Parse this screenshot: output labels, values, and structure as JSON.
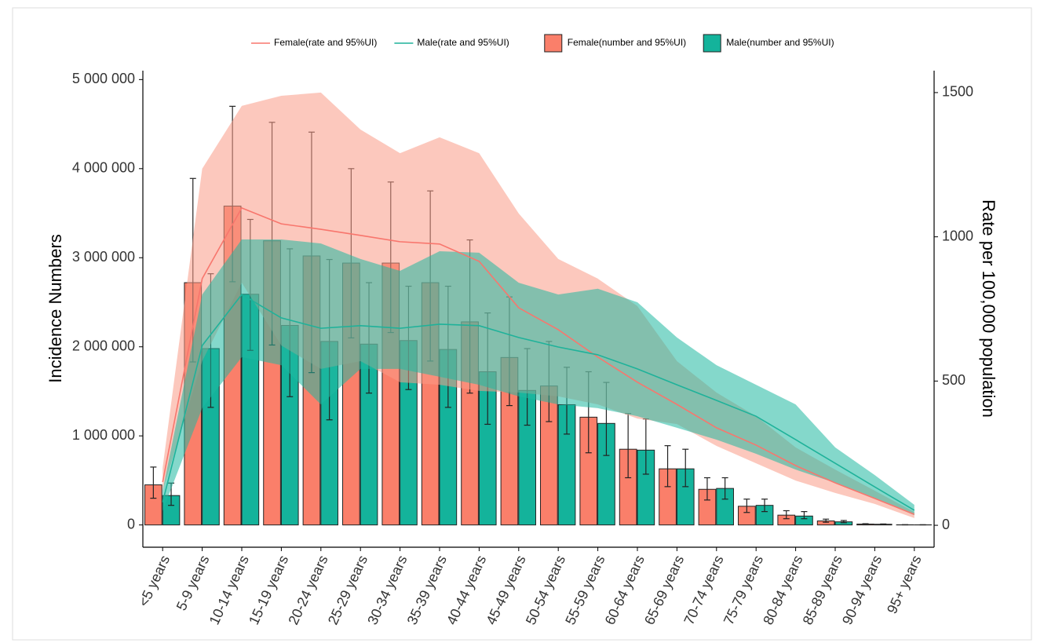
{
  "chart_data": {
    "type": "bar",
    "categories": [
      "<5 years",
      "5-9 years",
      "10-14 years",
      "15-19 years",
      "20-24 years",
      "25-29 years",
      "30-34 years",
      "35-39 years",
      "40-44 years",
      "45-49 years",
      "50-54 years",
      "55-59 years",
      "60-64 years",
      "65-69 years",
      "70-74 years",
      "75-79 years",
      "80-84 years",
      "85-89 years",
      "90-94 years",
      "95+ years"
    ],
    "y_label": "Incidence Numbers",
    "y2_label": "Rate per 100,000 population",
    "ylim": [
      -250000,
      5100000
    ],
    "yticks": [
      0,
      {
        "value": 1000000,
        "label": "1 000 000"
      },
      {
        "value": 2000000,
        "label": "2 000 000"
      },
      {
        "value": 3000000,
        "label": "3 000 000"
      },
      {
        "value": 4000000,
        "label": "4 000 000"
      },
      {
        "value": 5000000,
        "label": "5 000 000"
      }
    ],
    "y2lim": [
      -76,
      1576
    ],
    "y2ticks": [
      0,
      500,
      1000,
      1500
    ],
    "legend": "top",
    "series": [
      {
        "name": "Female(rate and 95%UI)",
        "kind": "line",
        "axis": "y2",
        "color": "#f8766d",
        "band_color": "#fa9a86",
        "values": [
          150,
          855,
          1100,
          1045,
          1026,
          1005,
          983,
          975,
          915,
          754,
          678,
          583,
          496,
          419,
          338,
          278,
          207,
          147,
          93,
          38
        ],
        "lower": [
          120,
          569,
          841,
          623,
          542,
          569,
          496,
          487,
          466,
          460,
          447,
          419,
          370,
          351,
          275,
          215,
          155,
          112,
          74,
          25
        ],
        "upper": [
          200,
          1236,
          1454,
          1489,
          1500,
          1372,
          1290,
          1345,
          1290,
          1081,
          923,
          855,
          760,
          569,
          460,
          378,
          270,
          193,
          120,
          46
        ]
      },
      {
        "name": "Male(rate and 95%UI)",
        "kind": "line",
        "axis": "y2",
        "color": "#1fb29a",
        "band_color": "#1fb8a0",
        "values": [
          80,
          623,
          800,
          719,
          683,
          692,
          683,
          697,
          692,
          651,
          618,
          591,
          542,
          487,
          433,
          378,
          297,
          215,
          133,
          52
        ],
        "lower": [
          50,
          406,
          583,
          555,
          419,
          542,
          542,
          515,
          487,
          447,
          419,
          406,
          378,
          338,
          297,
          248,
          193,
          147,
          93,
          35
        ],
        "upper": [
          120,
          800,
          991,
          991,
          977,
          923,
          882,
          950,
          945,
          841,
          800,
          820,
          773,
          651,
          555,
          487,
          419,
          270,
          174,
          71
        ]
      },
      {
        "name": "Female(number and 95%UI)",
        "kind": "bar",
        "color": "#fa7f6a",
        "values": [
          450000,
          2720000,
          3580000,
          3190000,
          3020000,
          2940000,
          2940000,
          2720000,
          2280000,
          1880000,
          1560000,
          1210000,
          850000,
          630000,
          400000,
          210000,
          110000,
          45000,
          10000,
          2000
        ],
        "lower": [
          300000,
          1830000,
          2730000,
          2020000,
          1710000,
          2100000,
          2160000,
          1840000,
          1480000,
          1340000,
          1160000,
          810000,
          530000,
          430000,
          280000,
          140000,
          70000,
          30000,
          7000,
          1000
        ],
        "upper": [
          650000,
          3890000,
          4700000,
          4520000,
          4410000,
          4000000,
          3850000,
          3750000,
          3200000,
          2560000,
          2060000,
          1720000,
          1250000,
          890000,
          530000,
          290000,
          160000,
          65000,
          14000,
          3000
        ]
      },
      {
        "name": "Male(number and 95%UI)",
        "kind": "bar",
        "color": "#14b39b",
        "values": [
          330000,
          1980000,
          2590000,
          2240000,
          2060000,
          2030000,
          2070000,
          1970000,
          1720000,
          1510000,
          1350000,
          1140000,
          840000,
          630000,
          410000,
          220000,
          100000,
          35000,
          8000,
          1500
        ],
        "lower": [
          220000,
          1320000,
          1960000,
          1440000,
          1180000,
          1480000,
          1520000,
          1320000,
          1130000,
          1120000,
          1020000,
          780000,
          570000,
          430000,
          290000,
          150000,
          70000,
          25000,
          5000,
          800
        ],
        "upper": [
          470000,
          2820000,
          3430000,
          3100000,
          2980000,
          2720000,
          2680000,
          2680000,
          2380000,
          1980000,
          1770000,
          1600000,
          1190000,
          850000,
          530000,
          290000,
          150000,
          50000,
          11000,
          2500
        ]
      }
    ]
  }
}
